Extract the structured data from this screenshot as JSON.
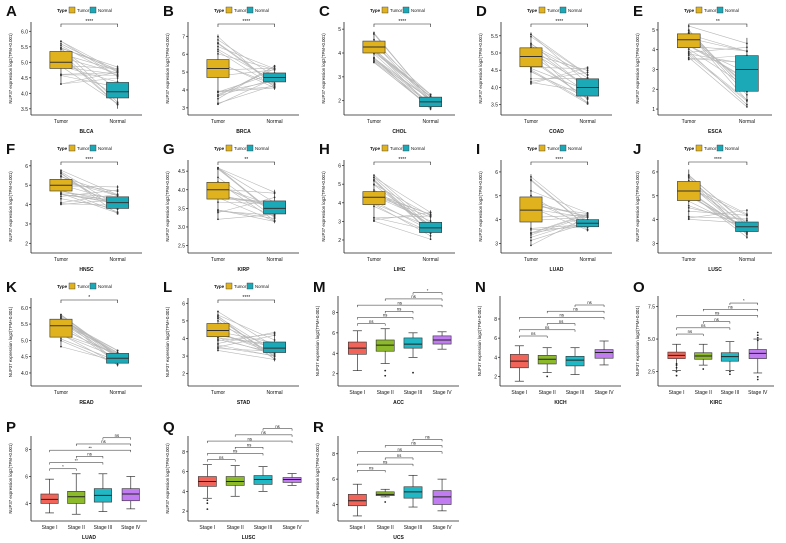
{
  "figure": {
    "tumor_color": "#E0B21E",
    "normal_color": "#1BA9B8",
    "stage_colors": [
      "#F0645A",
      "#8DBA2A",
      "#21B8C6",
      "#C07CF0"
    ],
    "legend": {
      "title": "Type",
      "tumor": "Tumor",
      "normal": "Normal"
    },
    "ylabel": "NUP37 expression log2(TPM+0.001)"
  },
  "chart_data": [
    {
      "panel": "A",
      "type": "box",
      "kind": "paired",
      "cancer": "BLCA",
      "categories": [
        "Tumor",
        "Normal"
      ],
      "yticks": [
        3.5,
        4.0,
        4.5,
        5.0,
        5.5,
        6.0
      ],
      "ylim": [
        3.3,
        6.3
      ],
      "sig": "****",
      "tumor": {
        "q1": 4.8,
        "median": 5.0,
        "q3": 5.35,
        "min": 4.3,
        "max": 5.7
      },
      "normal": {
        "q1": 3.85,
        "median": 4.05,
        "q3": 4.35,
        "min": 3.5,
        "max": 4.9
      }
    },
    {
      "panel": "B",
      "type": "box",
      "kind": "paired",
      "cancer": "BRCA",
      "categories": [
        "Tumor",
        "Normal"
      ],
      "yticks": [
        3,
        4,
        5,
        6,
        7
      ],
      "ylim": [
        2.6,
        7.8
      ],
      "sig": "****",
      "tumor": {
        "q1": 4.7,
        "median": 5.2,
        "q3": 5.7,
        "min": 3.2,
        "max": 7.1
      },
      "normal": {
        "q1": 4.45,
        "median": 4.7,
        "q3": 4.95,
        "min": 4.0,
        "max": 5.4
      }
    },
    {
      "panel": "C",
      "type": "box",
      "kind": "paired",
      "cancer": "CHOL",
      "categories": [
        "Tumor",
        "Normal"
      ],
      "yticks": [
        2,
        3,
        4,
        5
      ],
      "ylim": [
        1.4,
        5.3
      ],
      "sig": "****",
      "tumor": {
        "q1": 4.0,
        "median": 4.25,
        "q3": 4.5,
        "min": 3.6,
        "max": 4.9
      },
      "normal": {
        "q1": 1.75,
        "median": 1.95,
        "q3": 2.15,
        "min": 1.6,
        "max": 2.3
      }
    },
    {
      "panel": "D",
      "type": "box",
      "kind": "paired",
      "cancer": "COAD",
      "categories": [
        "Tumor",
        "Normal"
      ],
      "yticks": [
        3.5,
        4.0,
        4.5,
        5.0,
        5.5
      ],
      "ylim": [
        3.2,
        5.9
      ],
      "sig": "****",
      "tumor": {
        "q1": 4.6,
        "median": 4.9,
        "q3": 5.15,
        "min": 4.1,
        "max": 5.6
      },
      "normal": {
        "q1": 3.75,
        "median": 4.0,
        "q3": 4.25,
        "min": 3.5,
        "max": 4.6
      }
    },
    {
      "panel": "E",
      "type": "box",
      "kind": "paired",
      "cancer": "ESCA",
      "categories": [
        "Tumor",
        "Normal"
      ],
      "yticks": [
        1,
        2,
        3,
        4,
        5
      ],
      "ylim": [
        0.7,
        5.4
      ],
      "sig": "**",
      "tumor": {
        "q1": 4.1,
        "median": 4.5,
        "q3": 4.8,
        "min": 3.5,
        "max": 5.2
      },
      "normal": {
        "q1": 1.9,
        "median": 3.0,
        "q3": 3.7,
        "min": 1.1,
        "max": 4.6
      }
    },
    {
      "panel": "F",
      "type": "box",
      "kind": "paired",
      "cancer": "HNSC",
      "categories": [
        "Tumor",
        "Normal"
      ],
      "yticks": [
        2,
        3,
        4,
        5,
        6
      ],
      "ylim": [
        1.5,
        6.3
      ],
      "sig": "****",
      "tumor": {
        "q1": 4.7,
        "median": 5.0,
        "q3": 5.3,
        "min": 4.0,
        "max": 5.8
      },
      "normal": {
        "q1": 3.8,
        "median": 4.1,
        "q3": 4.4,
        "min": 3.5,
        "max": 5.0
      }
    },
    {
      "panel": "G",
      "type": "box",
      "kind": "paired",
      "cancer": "KIRP",
      "categories": [
        "Tumor",
        "Normal"
      ],
      "yticks": [
        2.5,
        3.0,
        3.5,
        4.0,
        4.5
      ],
      "ylim": [
        2.3,
        4.8
      ],
      "sig": "**",
      "tumor": {
        "q1": 3.75,
        "median": 4.0,
        "q3": 4.2,
        "min": 3.2,
        "max": 4.6
      },
      "normal": {
        "q1": 3.35,
        "median": 3.5,
        "q3": 3.7,
        "min": 3.1,
        "max": 4.0
      }
    },
    {
      "panel": "H",
      "type": "box",
      "kind": "paired",
      "cancer": "LIHC",
      "categories": [
        "Tumor",
        "Normal"
      ],
      "yticks": [
        2,
        3,
        4,
        5,
        6
      ],
      "ylim": [
        1.3,
        6.3
      ],
      "sig": "****",
      "tumor": {
        "q1": 3.9,
        "median": 4.3,
        "q3": 4.6,
        "min": 3.0,
        "max": 5.5
      },
      "normal": {
        "q1": 2.4,
        "median": 2.65,
        "q3": 2.95,
        "min": 2.0,
        "max": 3.6
      }
    },
    {
      "panel": "I",
      "type": "box",
      "kind": "paired",
      "cancer": "LUAD",
      "categories": [
        "Tumor",
        "Normal"
      ],
      "yticks": [
        3,
        4,
        5,
        6
      ],
      "ylim": [
        2.6,
        6.5
      ],
      "sig": "****",
      "tumor": {
        "q1": 3.9,
        "median": 4.4,
        "q3": 4.95,
        "min": 2.9,
        "max": 5.9
      },
      "normal": {
        "q1": 3.7,
        "median": 3.85,
        "q3": 4.0,
        "min": 3.5,
        "max": 4.3
      }
    },
    {
      "panel": "J",
      "type": "box",
      "kind": "paired",
      "cancer": "LUSC",
      "categories": [
        "Tumor",
        "Normal"
      ],
      "yticks": [
        3,
        4,
        5,
        6
      ],
      "ylim": [
        2.6,
        6.5
      ],
      "sig": "****",
      "tumor": {
        "q1": 4.8,
        "median": 5.2,
        "q3": 5.6,
        "min": 4.0,
        "max": 6.1
      },
      "normal": {
        "q1": 3.5,
        "median": 3.7,
        "q3": 3.9,
        "min": 3.2,
        "max": 4.4
      }
    },
    {
      "panel": "K",
      "type": "box",
      "kind": "paired",
      "cancer": "READ",
      "categories": [
        "Tumor",
        "Normal"
      ],
      "yticks": [
        4.0,
        4.5,
        5.0,
        5.5,
        6.0
      ],
      "ylim": [
        3.6,
        6.3
      ],
      "sig": "*",
      "tumor": {
        "q1": 5.1,
        "median": 5.45,
        "q3": 5.65,
        "min": 4.8,
        "max": 5.8
      },
      "normal": {
        "q1": 4.3,
        "median": 4.45,
        "q3": 4.6,
        "min": 4.2,
        "max": 4.7
      }
    },
    {
      "panel": "L",
      "type": "box",
      "kind": "paired",
      "cancer": "STAD",
      "categories": [
        "Tumor",
        "Normal"
      ],
      "yticks": [
        2,
        3,
        4,
        5,
        6
      ],
      "ylim": [
        1.3,
        6.3
      ],
      "sig": "****",
      "tumor": {
        "q1": 4.1,
        "median": 4.45,
        "q3": 4.85,
        "min": 3.3,
        "max": 5.6
      },
      "normal": {
        "q1": 3.2,
        "median": 3.45,
        "q3": 3.8,
        "min": 2.7,
        "max": 4.4
      }
    },
    {
      "panel": "M",
      "type": "box",
      "kind": "stage",
      "cancer": "ACC",
      "categories": [
        "Stage I",
        "Stage II",
        "Stage III",
        "Stage IV"
      ],
      "yticks": [
        2,
        4,
        6,
        8
      ],
      "ylim": [
        0.8,
        9.6
      ],
      "sig": [
        "ns",
        "ns",
        "ns",
        "ns",
        "ns",
        "*"
      ],
      "boxes": [
        {
          "q1": 3.9,
          "median": 4.5,
          "q3": 5.1,
          "min": 2.3,
          "max": 6.2
        },
        {
          "q1": 4.2,
          "median": 4.8,
          "q3": 5.3,
          "min": 3.0,
          "max": 6.4
        },
        {
          "q1": 4.5,
          "median": 4.9,
          "q3": 5.5,
          "min": 3.6,
          "max": 6.0
        },
        {
          "q1": 4.9,
          "median": 5.3,
          "q3": 5.7,
          "min": 4.4,
          "max": 6.1
        }
      ],
      "outliers": [
        [],
        [
          1.8,
          2.3
        ],
        [
          2.1
        ],
        []
      ]
    },
    {
      "panel": "N",
      "type": "box",
      "kind": "stage",
      "cancer": "KICH",
      "categories": [
        "Stage I",
        "Stage II",
        "Stage III",
        "Stage IV"
      ],
      "yticks": [
        2,
        4,
        6,
        8
      ],
      "ylim": [
        1.0,
        10.4
      ],
      "sig": [
        "ns",
        "ns",
        "ns",
        "ns",
        "ns",
        "ns"
      ],
      "boxes": [
        {
          "q1": 2.9,
          "median": 3.6,
          "q3": 4.3,
          "min": 1.5,
          "max": 5.2
        },
        {
          "q1": 3.3,
          "median": 3.8,
          "q3": 4.2,
          "min": 2.4,
          "max": 5.0
        },
        {
          "q1": 3.1,
          "median": 3.7,
          "q3": 4.1,
          "min": 2.2,
          "max": 5.0
        },
        {
          "q1": 3.9,
          "median": 4.5,
          "q3": 4.8,
          "min": 3.2,
          "max": 5.7
        }
      ],
      "outliers": [
        [],
        [
          2.0
        ],
        [],
        []
      ]
    },
    {
      "panel": "O",
      "type": "box",
      "kind": "stage",
      "cancer": "KIRC",
      "categories": [
        "Stage I",
        "Stage II",
        "Stage III",
        "Stage IV"
      ],
      "yticks": [
        2.5,
        5.0,
        7.5
      ],
      "ylim": [
        1.4,
        8.3
      ],
      "sig": [
        "ns",
        "ns",
        "ns",
        "ns",
        "ns",
        "*"
      ],
      "boxes": [
        {
          "q1": 3.5,
          "median": 3.75,
          "q3": 4.0,
          "min": 2.6,
          "max": 4.6
        },
        {
          "q1": 3.45,
          "median": 3.7,
          "q3": 3.95,
          "min": 3.0,
          "max": 4.6
        },
        {
          "q1": 3.3,
          "median": 3.65,
          "q3": 3.95,
          "min": 2.6,
          "max": 4.8
        },
        {
          "q1": 3.5,
          "median": 3.9,
          "q3": 4.2,
          "min": 2.4,
          "max": 5.0
        }
      ],
      "outliers": [
        [
          2.2,
          2.5,
          2.8,
          3.0,
          3.1
        ],
        [
          2.7
        ],
        [
          2.3,
          2.5
        ],
        [
          1.9,
          2.1,
          4.9,
          5.1,
          5.3,
          5.5
        ]
      ]
    },
    {
      "panel": "P",
      "type": "box",
      "kind": "stage",
      "cancer": "LUAD",
      "categories": [
        "Stage I",
        "Stage II",
        "Stage III",
        "Stage IV"
      ],
      "yticks": [
        4,
        6,
        8
      ],
      "ylim": [
        2.7,
        9.0
      ],
      "sig": [
        "*",
        "**",
        "ns",
        "**",
        "ns",
        "ns"
      ],
      "boxes": [
        {
          "q1": 4.0,
          "median": 4.3,
          "q3": 4.7,
          "min": 3.3,
          "max": 5.8
        },
        {
          "q1": 4.0,
          "median": 4.5,
          "q3": 4.9,
          "min": 3.2,
          "max": 6.2
        },
        {
          "q1": 4.1,
          "median": 4.6,
          "q3": 5.1,
          "min": 3.4,
          "max": 6.2
        },
        {
          "q1": 4.2,
          "median": 4.7,
          "q3": 5.1,
          "min": 3.6,
          "max": 6.0
        }
      ],
      "outliers": [
        [],
        [],
        [],
        []
      ]
    },
    {
      "panel": "Q",
      "type": "box",
      "kind": "stage",
      "cancer": "LUSC",
      "categories": [
        "Stage I",
        "Stage II",
        "Stage III",
        "Stage IV"
      ],
      "yticks": [
        2,
        4,
        6,
        8
      ],
      "ylim": [
        1.0,
        9.6
      ],
      "sig": [
        "ns",
        "ns",
        "ns",
        "ns",
        "ns",
        "ns"
      ],
      "boxes": [
        {
          "q1": 4.5,
          "median": 5.0,
          "q3": 5.5,
          "min": 3.3,
          "max": 6.7
        },
        {
          "q1": 4.6,
          "median": 5.0,
          "q3": 5.5,
          "min": 3.5,
          "max": 6.6
        },
        {
          "q1": 4.7,
          "median": 5.2,
          "q3": 5.6,
          "min": 4.0,
          "max": 6.5
        },
        {
          "q1": 4.9,
          "median": 5.2,
          "q3": 5.4,
          "min": 4.6,
          "max": 5.8
        }
      ],
      "outliers": [
        [
          2.2,
          2.8,
          3.1
        ],
        [],
        [],
        []
      ]
    },
    {
      "panel": "R",
      "type": "box",
      "kind": "stage",
      "cancer": "UCS",
      "categories": [
        "Stage I",
        "Stage II",
        "Stage III",
        "Stage IV"
      ],
      "yticks": [
        4,
        6,
        8
      ],
      "ylim": [
        2.7,
        9.4
      ],
      "sig": [
        "ns",
        "ns",
        "ns",
        "ns",
        "ns",
        "ns"
      ],
      "boxes": [
        {
          "q1": 3.9,
          "median": 4.3,
          "q3": 4.8,
          "min": 3.1,
          "max": 5.6
        },
        {
          "q1": 4.7,
          "median": 4.8,
          "q3": 5.0,
          "min": 4.6,
          "max": 5.2
        },
        {
          "q1": 4.5,
          "median": 5.0,
          "q3": 5.4,
          "min": 3.8,
          "max": 6.3
        },
        {
          "q1": 4.0,
          "median": 4.6,
          "q3": 5.1,
          "min": 3.5,
          "max": 6.0
        }
      ],
      "outliers": [
        [],
        [
          4.2
        ],
        [],
        []
      ]
    }
  ]
}
